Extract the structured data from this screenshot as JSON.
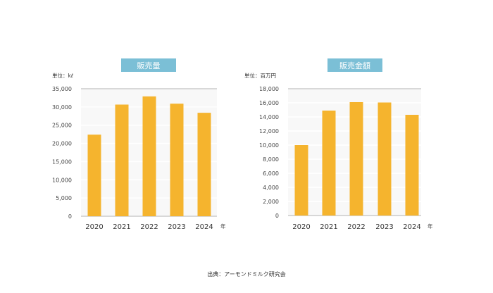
{
  "chart_data": [
    {
      "type": "bar",
      "title": "販売量",
      "unit_label": "単位：kℓ",
      "categories": [
        "2020",
        "2021",
        "2022",
        "2023",
        "2024"
      ],
      "values": [
        22400,
        30650,
        32900,
        30900,
        28400
      ],
      "ylim": [
        0,
        35000
      ],
      "yticks": [
        "0",
        "5,000",
        "10,000",
        "15,000",
        "20,000",
        "25,000",
        "30,000",
        "35,000"
      ],
      "xunit": "年",
      "grid": true,
      "bar_color": "#f5b42e",
      "title_bg": "#7bbfd6"
    },
    {
      "type": "bar",
      "title": "販売金額",
      "unit_label": "単位：百万円",
      "categories": [
        "2020",
        "2021",
        "2022",
        "2023",
        "2024"
      ],
      "values": [
        10000,
        14900,
        16100,
        16050,
        14300
      ],
      "ylim": [
        0,
        18000
      ],
      "yticks": [
        "0",
        "2,000",
        "4,000",
        "6,000",
        "8,000",
        "10,000",
        "12,000",
        "14,000",
        "16,000",
        "18,000"
      ],
      "xunit": "年",
      "grid": true,
      "bar_color": "#f5b42e",
      "title_bg": "#7bbfd6"
    }
  ],
  "source": "出典：アーモンドミルク研究会"
}
